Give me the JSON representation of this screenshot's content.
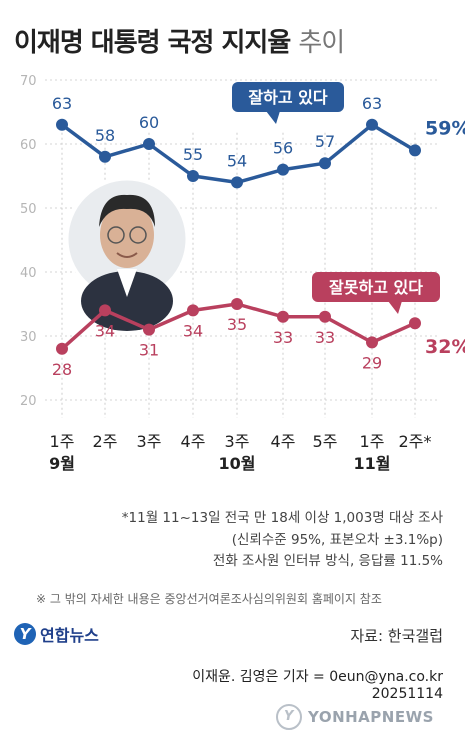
{
  "title": {
    "main": "이재명 대통령 국정 지지율",
    "suffix": "추이"
  },
  "chart_data": {
    "type": "line",
    "title": "이재명 대통령 국정 지지율 추이",
    "categories": [
      "1주",
      "2주",
      "3주",
      "4주",
      "3주",
      "4주",
      "5주",
      "1주",
      "2주*"
    ],
    "month_labels": [
      {
        "label": "9월",
        "index": 0
      },
      {
        "label": "10월",
        "index": 4
      },
      {
        "label": "11월",
        "index": 7
      }
    ],
    "y_ticks": [
      "70",
      "60",
      "50",
      "40",
      "30",
      "20"
    ],
    "ylim": [
      20,
      70
    ],
    "grid": true,
    "series": [
      {
        "name": "잘하고 있다",
        "color": "#2a5a9a",
        "values": [
          63,
          58,
          60,
          55,
          54,
          56,
          57,
          63,
          59
        ],
        "labels": [
          "63",
          "58",
          "60",
          "55",
          "54",
          "56",
          "57",
          "63",
          "59%"
        ]
      },
      {
        "name": "잘못하고 있다",
        "color": "#b9405e",
        "values": [
          28,
          34,
          31,
          34,
          35,
          33,
          33,
          29,
          32
        ],
        "labels": [
          "28",
          "34",
          "31",
          "34",
          "35",
          "33",
          "33",
          "29",
          "32%"
        ]
      }
    ]
  },
  "notes": [
    "*11월 11~13일 전국 만 18세 이상 1,003명 대상 조사",
    "(신뢰수준 95%, 표본오차 ±3.1%p)",
    "전화 조사원 인터뷰 방식, 응답률 11.5%"
  ],
  "source_note": "※ 그 밖의 자세한 내용은 중앙선거여론조사심의위원회 홈페이지 참조",
  "logo": {
    "mark": "Y",
    "name": "연합뉴스"
  },
  "source": "자료: 한국갤럽",
  "reporters": "이재윤. 김영은 기자 = 0eun@yna.co.kr",
  "date": "20251114",
  "watermark": "YONHAPNEWS"
}
